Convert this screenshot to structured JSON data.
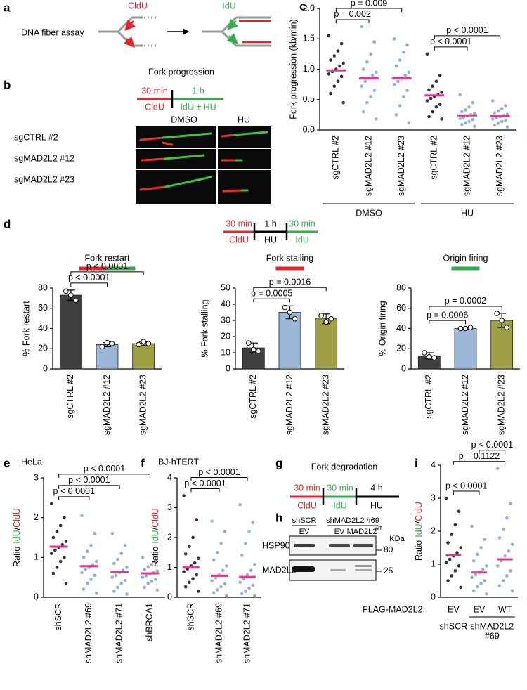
{
  "panel_labels": [
    "a",
    "b",
    "c",
    "d",
    "e",
    "f",
    "g",
    "h",
    "i"
  ],
  "panel_a": {
    "title": "DNA fiber assay",
    "label_1": "CldU",
    "label_2": "IdU"
  },
  "panel_b": {
    "title": "Fork progression",
    "steps": [
      {
        "time": "30 min",
        "label": "CldU"
      },
      {
        "time": "1 h",
        "label": "IdU ± HU"
      }
    ],
    "conditions": [
      "DMSO",
      "HU"
    ],
    "rows": [
      "sgCTRL #2",
      "sgMAD2L2 #12",
      "sgMAD2L2 #23"
    ]
  },
  "panel_d": {
    "steps": [
      {
        "time": "30 min",
        "label": "CldU"
      },
      {
        "time": "1 h",
        "label": "HU"
      },
      {
        "time": "30 min",
        "label": "IdU"
      }
    ]
  },
  "panel_g": {
    "title": "Fork degradation",
    "steps": [
      {
        "time": "30 min",
        "label": "CldU"
      },
      {
        "time": "30 min",
        "label": "IdU"
      },
      {
        "time": "4 h",
        "label": "HU"
      }
    ]
  },
  "panel_h": {
    "groups": [
      "shSCR",
      "shMAD2L2 #69"
    ],
    "lanes": [
      "EV",
      "EV",
      "MAD2L2"
    ],
    "lane_sup": "WT",
    "proteins": [
      "HSP90",
      "MAD2L2"
    ],
    "unit": "KDa",
    "markers": [
      80,
      25
    ]
  },
  "chart_data": [
    {
      "type": "dotplot",
      "ylabel": "Fork progression (kb/min)",
      "categories": [
        "sgCTRL #2",
        "sgMAD2L2 #12",
        "sgMAD2L2 #23",
        "sgCTRL #2",
        "sgMAD2L2 #12",
        "sgMAD2L2 #23"
      ],
      "colors": [
        "#333333",
        "#8fb0da",
        "#8fb0da",
        "#333333",
        "#8fb0da",
        "#8fb0da"
      ],
      "mean_color": "#e8368f",
      "values": [
        0.98,
        0.85,
        0.85,
        0.57,
        0.24,
        0.23
      ],
      "points": [
        [
          1.55,
          1.42,
          1.3,
          1.22,
          1.15,
          1.1,
          1.05,
          1.0,
          0.96,
          0.92,
          0.88,
          0.8,
          0.72,
          0.6,
          0.45
        ],
        [
          1.7,
          1.45,
          1.25,
          1.12,
          1.0,
          0.95,
          0.9,
          0.85,
          0.8,
          0.72,
          0.65,
          0.55,
          0.45,
          0.3,
          0.18
        ],
        [
          1.5,
          1.4,
          1.28,
          1.15,
          1.05,
          0.95,
          0.9,
          0.85,
          0.8,
          0.75,
          0.65,
          0.55,
          0.4,
          0.25,
          0.12
        ],
        [
          1.25,
          0.9,
          0.8,
          0.72,
          0.66,
          0.62,
          0.58,
          0.55,
          0.52,
          0.48,
          0.42,
          0.38,
          0.3,
          0.22,
          0.18
        ],
        [
          0.58,
          0.45,
          0.38,
          0.33,
          0.3,
          0.27,
          0.25,
          0.23,
          0.21,
          0.19,
          0.17,
          0.14,
          0.12,
          0.09,
          0.06
        ],
        [
          0.48,
          0.4,
          0.35,
          0.31,
          0.28,
          0.26,
          0.24,
          0.22,
          0.2,
          0.18,
          0.16,
          0.14,
          0.11,
          0.08,
          0.05
        ]
      ],
      "ylim": [
        0,
        2
      ],
      "yticks": [
        {
          "value": 0,
          "label": "0.0"
        },
        {
          "value": 0.5,
          "label": "0.5"
        },
        {
          "value": 1,
          "label": "1.0"
        },
        {
          "value": 1.5,
          "label": "1.5"
        },
        {
          "value": 2,
          "label": "2.0"
        }
      ],
      "annotations": [
        {
          "text": "p = 0.002",
          "from": 0,
          "to": 1
        },
        {
          "text": "p = 0.009",
          "from": 0,
          "to": 2
        },
        {
          "text": "p < 0.0001",
          "from": 3,
          "to": 4
        },
        {
          "text": "p < 0.0001",
          "from": 3,
          "to": 5
        }
      ],
      "groups": [
        {
          "label": [
            "DMSO"
          ],
          "from": 0,
          "to": 2
        },
        {
          "label": [
            "HU"
          ],
          "from": 3,
          "to": 5
        }
      ]
    },
    {
      "type": "bar",
      "title": "Fork restart",
      "legend_colors": [
        "#e3262b",
        "#2fae4a"
      ],
      "ylabel": "% Fork restart",
      "categories": [
        "sgCTRL #2",
        "sgMAD2L2 #12",
        "sgMAD2L2 #23"
      ],
      "colors": [
        "#404040",
        "#9cb7d8",
        "#9fa045"
      ],
      "values": [
        73,
        24,
        25
      ],
      "errors": [
        5,
        2,
        2
      ],
      "points": [
        [
          77,
          73,
          68
        ],
        [
          22,
          26,
          25
        ],
        [
          24,
          27,
          25
        ]
      ],
      "ylim": [
        0,
        80
      ],
      "yticks": [
        0,
        20,
        40,
        60,
        80
      ],
      "annotations": [
        {
          "text": "p < 0.0001",
          "from": 0,
          "to": 1
        },
        {
          "text": "p < 0.0001",
          "from": 0,
          "to": 2
        }
      ]
    },
    {
      "type": "bar",
      "title": "Fork stalling",
      "legend_colors": [
        "#e3262b"
      ],
      "ylabel": "% Fork stalling",
      "categories": [
        "sgCTRL #2",
        "sgMAD2L2 #12",
        "sgMAD2L2 #23"
      ],
      "colors": [
        "#404040",
        "#9cb7d8",
        "#9fa045"
      ],
      "values": [
        13,
        35,
        31
      ],
      "errors": [
        3,
        4,
        3
      ],
      "points": [
        [
          16,
          12,
          11
        ],
        [
          38,
          35,
          31
        ],
        [
          33,
          29,
          31
        ]
      ],
      "ylim": [
        0,
        50
      ],
      "yticks": [
        0,
        10,
        20,
        30,
        40,
        50
      ],
      "annotations": [
        {
          "text": "p = 0.0005",
          "from": 0,
          "to": 1
        },
        {
          "text": "p = 0.0016",
          "from": 0,
          "to": 2
        }
      ]
    },
    {
      "type": "bar",
      "title": "Origin firing",
      "legend_colors": [
        "#2fae4a"
      ],
      "ylabel": "% Origin firing",
      "categories": [
        "sgCTRL #2",
        "sgMAD2L2 #12",
        "sgMAD2L2 #23"
      ],
      "colors": [
        "#404040",
        "#9cb7d8",
        "#9fa045"
      ],
      "values": [
        13,
        40,
        48
      ],
      "errors": [
        3,
        1,
        7
      ],
      "points": [
        [
          16,
          12,
          11
        ],
        [
          40,
          40,
          41
        ],
        [
          55,
          48,
          41
        ]
      ],
      "ylim": [
        0,
        80
      ],
      "yticks": [
        0,
        20,
        40,
        60,
        80
      ],
      "annotations": [
        {
          "text": "p = 0.0006",
          "from": 0,
          "to": 1
        },
        {
          "text": "p = 0.0002",
          "from": 0,
          "to": 2
        }
      ]
    },
    {
      "type": "dotplot",
      "title": "HeLa",
      "ylabel_parts": [
        {
          "text": "Ratio",
          "color": "#000000"
        },
        {
          "text": "IdU",
          "color": "#2fae4a"
        },
        {
          "text": "/",
          "color": "#000000"
        },
        {
          "text": "CldU",
          "color": "#e3262b"
        }
      ],
      "categories": [
        "shSCR",
        "shMAD2L2 #69",
        "shMAD2L2 #71",
        "shBRCA1"
      ],
      "colors": [
        "#333333",
        "#8fb0da",
        "#8fb0da",
        "#8fb0da"
      ],
      "mean_color": "#e8368f",
      "values": [
        1.27,
        0.78,
        0.63,
        0.6
      ],
      "points": [
        [
          2.35,
          2.0,
          1.8,
          1.65,
          1.5,
          1.4,
          1.32,
          1.25,
          1.18,
          1.1,
          1.0,
          0.9,
          0.75,
          0.6,
          0.35
        ],
        [
          2.05,
          1.6,
          1.3,
          1.15,
          1.0,
          0.9,
          0.82,
          0.75,
          0.7,
          0.62,
          0.55,
          0.45,
          0.35,
          0.2,
          0.1
        ],
        [
          1.6,
          1.3,
          1.1,
          0.95,
          0.85,
          0.75,
          0.68,
          0.62,
          0.55,
          0.5,
          0.42,
          0.35,
          0.25,
          0.15,
          0.08
        ],
        [
          1.0,
          0.9,
          0.82,
          0.76,
          0.7,
          0.66,
          0.62,
          0.58,
          0.54,
          0.5,
          0.45,
          0.4,
          0.35,
          0.25,
          0.18
        ]
      ],
      "ylim": [
        0,
        3
      ],
      "yticks": [
        0,
        1,
        2,
        3
      ],
      "annotations": [
        {
          "text": "p < 0.0001",
          "from": 0,
          "to": 1
        },
        {
          "text": "p < 0.0001",
          "from": 0,
          "to": 2
        },
        {
          "text": "p < 0.0001",
          "from": 0,
          "to": 3
        }
      ]
    },
    {
      "type": "dotplot",
      "title": "BJ-hTERT",
      "ylabel_parts": [
        {
          "text": "Ratio",
          "color": "#000000"
        },
        {
          "text": "IdU",
          "color": "#2fae4a"
        },
        {
          "text": "/",
          "color": "#000000"
        },
        {
          "text": "CldU",
          "color": "#e3262b"
        }
      ],
      "categories": [
        "shSCR",
        "shMAD2L2 #69",
        "shMAD2L2 #71"
      ],
      "colors": [
        "#333333",
        "#8fb0da",
        "#8fb0da"
      ],
      "mean_color": "#e8368f",
      "values": [
        1.0,
        0.72,
        0.68
      ],
      "points": [
        [
          3.4,
          2.6,
          2.0,
          1.7,
          1.45,
          1.3,
          1.15,
          1.05,
          0.95,
          0.85,
          0.75,
          0.62,
          0.5,
          0.35,
          0.2
        ],
        [
          2.55,
          2.2,
          1.8,
          1.5,
          1.25,
          1.05,
          0.9,
          0.75,
          0.65,
          0.55,
          0.45,
          0.35,
          0.25,
          0.15,
          0.05
        ],
        [
          3.1,
          2.5,
          2.2,
          1.8,
          1.4,
          1.1,
          0.9,
          0.75,
          0.62,
          0.5,
          0.4,
          0.3,
          0.2,
          0.12,
          0.05
        ]
      ],
      "ylim": [
        0,
        4
      ],
      "yticks": [
        0,
        1,
        2,
        3,
        4
      ],
      "annotations": [
        {
          "text": "p < 0.0001",
          "from": 0,
          "to": 1
        },
        {
          "text": "p < 0.0001",
          "from": 0,
          "to": 2
        }
      ]
    },
    {
      "type": "dotplot",
      "ylabel_parts": [
        {
          "text": "Ratio",
          "color": "#000000"
        },
        {
          "text": "IdU",
          "color": "#2fae4a"
        },
        {
          "text": "/",
          "color": "#000000"
        },
        {
          "text": "CldU",
          "color": "#e3262b"
        }
      ],
      "category_axis_label": "FLAG-MAD2L2:",
      "categories": [
        "EV",
        "EV",
        "WT"
      ],
      "colors": [
        "#333333",
        "#8fb0da",
        "#8fb0da"
      ],
      "mean_color": "#e8368f",
      "values": [
        1.27,
        0.75,
        1.15
      ],
      "points": [
        [
          3.0,
          2.6,
          2.2,
          1.9,
          1.65,
          1.5,
          1.35,
          1.25,
          1.15,
          1.05,
          0.95,
          0.8,
          0.65,
          0.5,
          0.3
        ],
        [
          2.15,
          1.75,
          1.5,
          1.3,
          1.1,
          0.95,
          0.85,
          0.75,
          0.68,
          0.6,
          0.5,
          0.42,
          0.32,
          0.2,
          0.1
        ],
        [
          3.9,
          2.85,
          2.4,
          2.05,
          1.8,
          1.6,
          1.4,
          1.25,
          1.1,
          0.95,
          0.8,
          0.65,
          0.5,
          0.35,
          0.2
        ]
      ],
      "ylim": [
        0,
        4
      ],
      "yticks": [
        0,
        1,
        2,
        3,
        4
      ],
      "annotations": [
        {
          "text": "p < 0.0001",
          "from": 0,
          "to": 1
        },
        {
          "text": "p = 0.1122",
          "from": 0,
          "to": 2
        },
        {
          "text": "p < 0.0001",
          "from": 1,
          "to": 2
        }
      ],
      "groups": [
        {
          "label": [
            "shSCR"
          ],
          "from": 0,
          "to": 0
        },
        {
          "label": [
            "shMAD2L2",
            "#69"
          ],
          "from": 1,
          "to": 2
        }
      ]
    }
  ]
}
